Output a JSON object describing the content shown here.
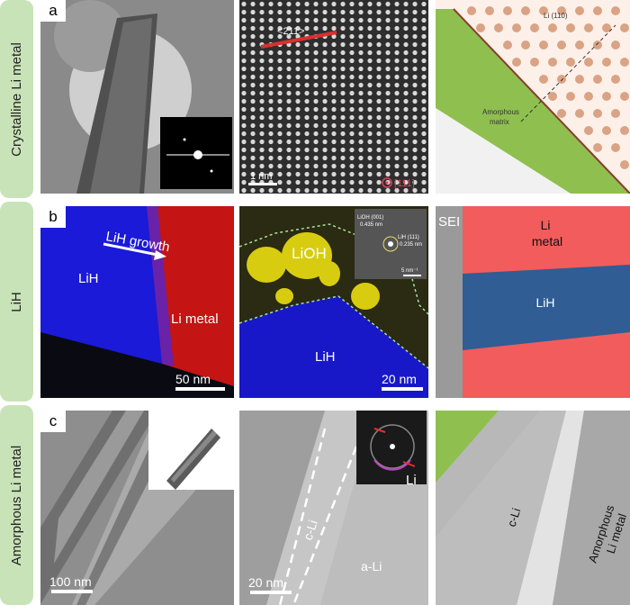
{
  "rows": [
    {
      "label": "Crystalline Li metal",
      "letter": "a"
    },
    {
      "label": "LiH",
      "letter": "b"
    },
    {
      "label": "Amorphous Li metal",
      "letter": "c"
    }
  ],
  "row_a": {
    "direction": "<211>",
    "scalebar": "1 nm",
    "zone_axis": "[111]",
    "schematic_plane": "Li (110)",
    "schematic_matrix": "Amorphous\nmatrix"
  },
  "row_b": {
    "growth": "LiH growth",
    "lih": "LiH",
    "li_metal": "Li metal",
    "scalebar1": "50 nm",
    "lioh": "LiOH",
    "lioh_lattice": "LiOH (001)\n0.435 nm",
    "lih_lattice": "LiH (111)\n0.235 nm",
    "inset_scale": "5 nm⁻¹",
    "lih2": "LiH",
    "scalebar2": "20 nm",
    "sei": "SEI",
    "li_metal_schematic": "Li\nmetal",
    "lih_schematic": "LiH"
  },
  "row_c": {
    "scalebar1": "100 nm",
    "cli": "c-Li",
    "ali": "a-Li",
    "li_fft": "Li",
    "scalebar2": "20 nm",
    "cli_schematic": "c-Li",
    "amorph_schematic": "Amorphous\nLi metal"
  },
  "colors": {
    "green": "#8fbf4f",
    "orange_dot": "#d9a385",
    "red": "#f25c5c",
    "blue": "#2f5d94",
    "grey": "#9a9a9a"
  }
}
